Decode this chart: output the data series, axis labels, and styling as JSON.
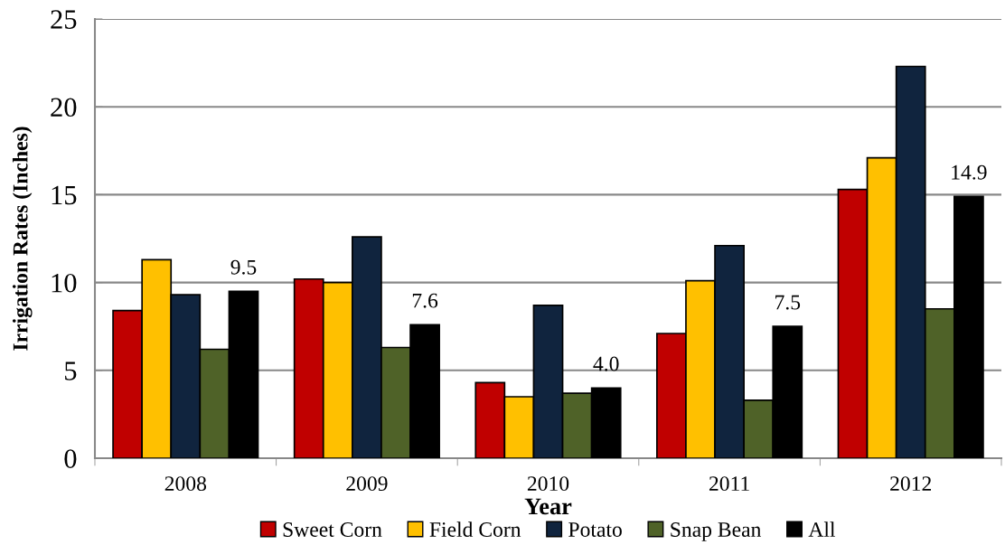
{
  "chart_data": {
    "type": "bar",
    "xlabel": "Year",
    "ylabel": "Irrigation Rates (Inches)",
    "categories": [
      "2008",
      "2009",
      "2010",
      "2011",
      "2012"
    ],
    "series": [
      {
        "name": "Sweet Corn",
        "color": "#c00000",
        "values": [
          8.4,
          10.2,
          4.3,
          7.1,
          15.3
        ]
      },
      {
        "name": "Field Corn",
        "color": "#ffc000",
        "values": [
          11.3,
          10.0,
          3.5,
          10.1,
          17.1
        ]
      },
      {
        "name": "Potato",
        "color": "#10243e",
        "values": [
          9.3,
          12.6,
          8.7,
          12.1,
          22.3
        ]
      },
      {
        "name": "Snap Bean",
        "color": "#4f6228",
        "values": [
          6.2,
          6.3,
          3.7,
          3.3,
          8.5
        ]
      },
      {
        "name": "All",
        "color": "#000000",
        "values": [
          9.5,
          7.6,
          4.0,
          7.5,
          14.9
        ],
        "value_labels": [
          "9.5",
          "7.6",
          "4.0",
          "7.5",
          "14.9"
        ]
      }
    ],
    "ylim": [
      0,
      25
    ],
    "yticks": [
      0,
      5,
      10,
      15,
      20,
      25
    ],
    "grid": "y",
    "legend": "bottom"
  }
}
